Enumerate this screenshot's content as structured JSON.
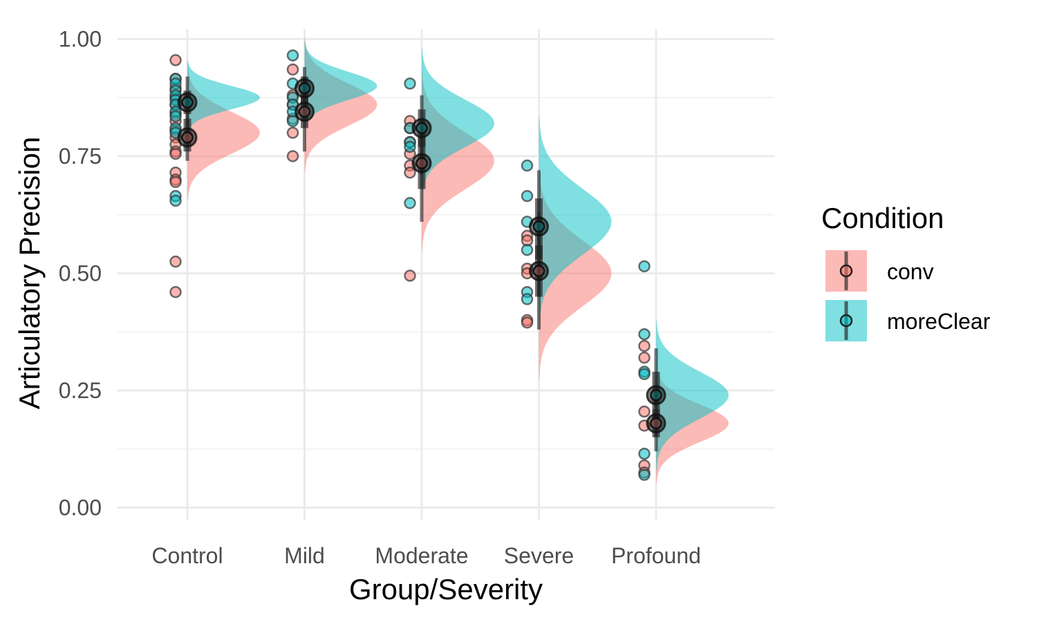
{
  "chart_data": {
    "type": "raincloud",
    "title": "",
    "xlabel": "Group/Severity",
    "ylabel": "Articulatory Precision",
    "ylim": [
      -0.04,
      1.04
    ],
    "y_ticks": [
      "0.00",
      "0.25",
      "0.50",
      "0.75",
      "1.00"
    ],
    "y_tick_values": [
      0,
      0.25,
      0.5,
      0.75,
      1.0
    ],
    "categories": [
      "Control",
      "Mild",
      "Moderate",
      "Severe",
      "Profound"
    ],
    "legend": {
      "title": "Condition",
      "position": "right"
    },
    "series": [
      {
        "name": "conv",
        "color": "#F8766D",
        "summary": [
          {
            "mean": 0.79,
            "ci_low": 0.74,
            "ci_high": 0.88,
            "iqr_low": 0.76,
            "iqr_high": 0.83,
            "density_mode": 0.8,
            "density_sd": 0.045
          },
          {
            "mean": 0.845,
            "ci_low": 0.76,
            "ci_high": 0.92,
            "iqr_low": 0.81,
            "iqr_high": 0.88,
            "density_mode": 0.86,
            "density_sd": 0.045
          },
          {
            "mean": 0.735,
            "ci_low": 0.61,
            "ci_high": 0.82,
            "iqr_low": 0.68,
            "iqr_high": 0.79,
            "density_mode": 0.74,
            "density_sd": 0.06
          },
          {
            "mean": 0.505,
            "ci_low": 0.38,
            "ci_high": 0.63,
            "iqr_low": 0.45,
            "iqr_high": 0.56,
            "density_mode": 0.5,
            "density_sd": 0.07
          },
          {
            "mean": 0.18,
            "ci_low": 0.12,
            "ci_high": 0.25,
            "iqr_low": 0.15,
            "iqr_high": 0.21,
            "density_mode": 0.18,
            "density_sd": 0.04
          }
        ],
        "points": [
          [
            0.955,
            0.915,
            0.895,
            0.875,
            0.86,
            0.84,
            0.825,
            0.805,
            0.79,
            0.775,
            0.76,
            0.755,
            0.715,
            0.7,
            0.695,
            0.525,
            0.46
          ],
          [
            0.935,
            0.88,
            0.86,
            0.83,
            0.8,
            0.75
          ],
          [
            0.825,
            0.81,
            0.78,
            0.755,
            0.73,
            0.715,
            0.495
          ],
          [
            0.58,
            0.57,
            0.51,
            0.5,
            0.4,
            0.395
          ],
          [
            0.345,
            0.32,
            0.205,
            0.175,
            0.09,
            0.075
          ]
        ]
      },
      {
        "name": "moreClear",
        "color": "#00BFC4",
        "summary": [
          {
            "mean": 0.865,
            "ci_low": 0.8,
            "ci_high": 0.92,
            "iqr_low": 0.84,
            "iqr_high": 0.89,
            "density_mode": 0.875,
            "density_sd": 0.025
          },
          {
            "mean": 0.895,
            "ci_low": 0.83,
            "ci_high": 0.94,
            "iqr_low": 0.86,
            "iqr_high": 0.92,
            "density_mode": 0.9,
            "density_sd": 0.03
          },
          {
            "mean": 0.81,
            "ci_low": 0.71,
            "ci_high": 0.88,
            "iqr_low": 0.77,
            "iqr_high": 0.85,
            "density_mode": 0.82,
            "density_sd": 0.05
          },
          {
            "mean": 0.6,
            "ci_low": 0.45,
            "ci_high": 0.72,
            "iqr_low": 0.53,
            "iqr_high": 0.66,
            "density_mode": 0.61,
            "density_sd": 0.07
          },
          {
            "mean": 0.24,
            "ci_low": 0.15,
            "ci_high": 0.34,
            "iqr_low": 0.19,
            "iqr_high": 0.29,
            "density_mode": 0.24,
            "density_sd": 0.05
          }
        ],
        "points": [
          [
            0.915,
            0.905,
            0.89,
            0.88,
            0.87,
            0.86,
            0.845,
            0.835,
            0.81,
            0.8,
            0.665,
            0.655
          ],
          [
            0.965,
            0.905,
            0.875,
            0.86,
            0.845,
            0.825
          ],
          [
            0.905,
            0.81,
            0.78,
            0.77,
            0.65
          ],
          [
            0.73,
            0.665,
            0.61,
            0.55,
            0.46,
            0.445
          ],
          [
            0.515,
            0.37,
            0.29,
            0.285,
            0.115,
            0.07
          ]
        ]
      }
    ]
  }
}
